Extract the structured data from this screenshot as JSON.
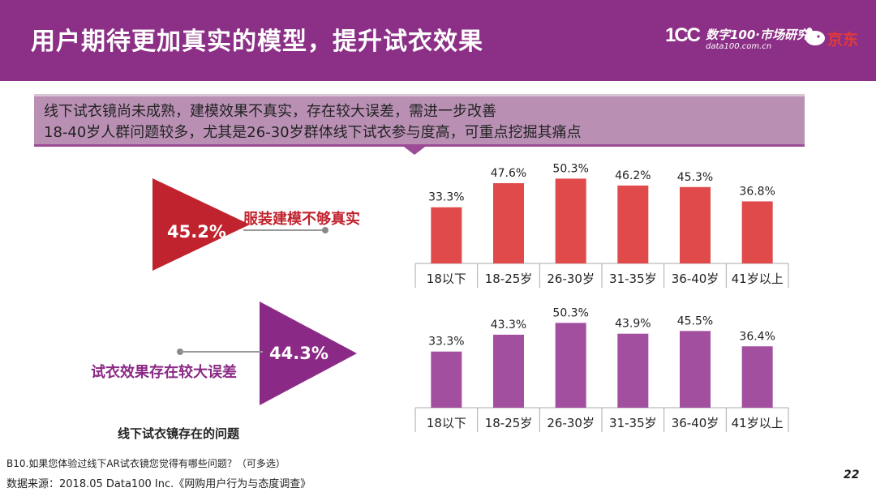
{
  "header": {
    "title": "用户期待更加真实的模型，提升试衣效果",
    "logo_mark": "1CC",
    "logo_text": "数字100·市场研究",
    "logo_url": "data100.com.cn",
    "partner_logo": "京东"
  },
  "callout": {
    "line1": "线下试衣镜尚未成熟，建模效果不真实，存在较大误差，需进一步改善",
    "line2": "18-40岁人群问题较多，尤其是26-30岁群体线下试衣参与度高，可重点挖掘其痛点"
  },
  "issues": [
    {
      "pct": "45.2%",
      "label": "服装建模不够真实",
      "color": "#c0232e"
    },
    {
      "pct": "44.3%",
      "label": "试衣效果存在较大误差",
      "color": "#8b2a86"
    }
  ],
  "chart_data": [
    {
      "type": "bar",
      "categories": [
        "18以下",
        "18-25岁",
        "26-30岁",
        "31-35岁",
        "36-40岁",
        "41岁以上"
      ],
      "values": [
        33.3,
        47.6,
        50.3,
        46.2,
        45.3,
        36.8
      ],
      "data_labels": [
        "33.3%",
        "47.6%",
        "50.3%",
        "46.2%",
        "45.3%",
        "36.8%"
      ],
      "color": "#e04a4a",
      "grid": false
    },
    {
      "type": "bar",
      "categories": [
        "18以下",
        "18-25岁",
        "26-30岁",
        "31-35岁",
        "36-40岁",
        "41岁以上"
      ],
      "values": [
        33.3,
        43.3,
        50.3,
        43.9,
        45.5,
        36.4
      ],
      "data_labels": [
        "33.3%",
        "43.3%",
        "50.3%",
        "43.9%",
        "45.5%",
        "36.4%"
      ],
      "color": "#a24fa0",
      "grid": false
    }
  ],
  "caption": "线下试衣镜存在的问题",
  "footnote": {
    "question": "B10.如果您体验过线下AR试衣镜您觉得有哪些问题？（可多选）",
    "source": "数据来源：2018.05 Data100 Inc.《网购用户行为与态度调查》"
  },
  "page_number": "22"
}
